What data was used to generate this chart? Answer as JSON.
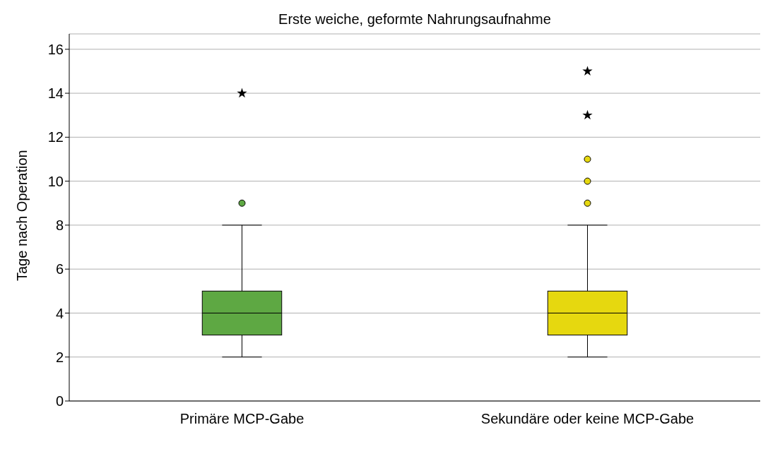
{
  "chart_data": {
    "type": "box",
    "title": "Erste weiche, geformte Nahrungsaufnahme",
    "ylabel": "Tage nach Operation",
    "categories": [
      "Primäre MCP-Gabe",
      "Sekundäre oder keine MCP-Gabe"
    ],
    "colors": [
      "#5ea843",
      "#e6d80f"
    ],
    "boxes": [
      {
        "low": 2,
        "q1": 3,
        "median": 4,
        "q3": 5,
        "high": 8,
        "outliers": [
          9
        ]
      },
      {
        "low": 2,
        "q1": 3,
        "median": 4,
        "q3": 5,
        "high": 8,
        "outliers": [
          9,
          10,
          11
        ]
      }
    ],
    "series": [
      {
        "type": "scatter",
        "marker": "star",
        "color": "#000000",
        "x": [
          "Primäre MCP-Gabe",
          "Sekundäre oder keine MCP-Gabe",
          "Sekundäre oder keine MCP-Gabe"
        ],
        "values": [
          14,
          13,
          15
        ]
      }
    ],
    "ylim": [
      0,
      16.7
    ],
    "yticks": [
      0,
      2,
      4,
      6,
      8,
      10,
      12,
      14,
      16
    ],
    "grid": "y"
  }
}
